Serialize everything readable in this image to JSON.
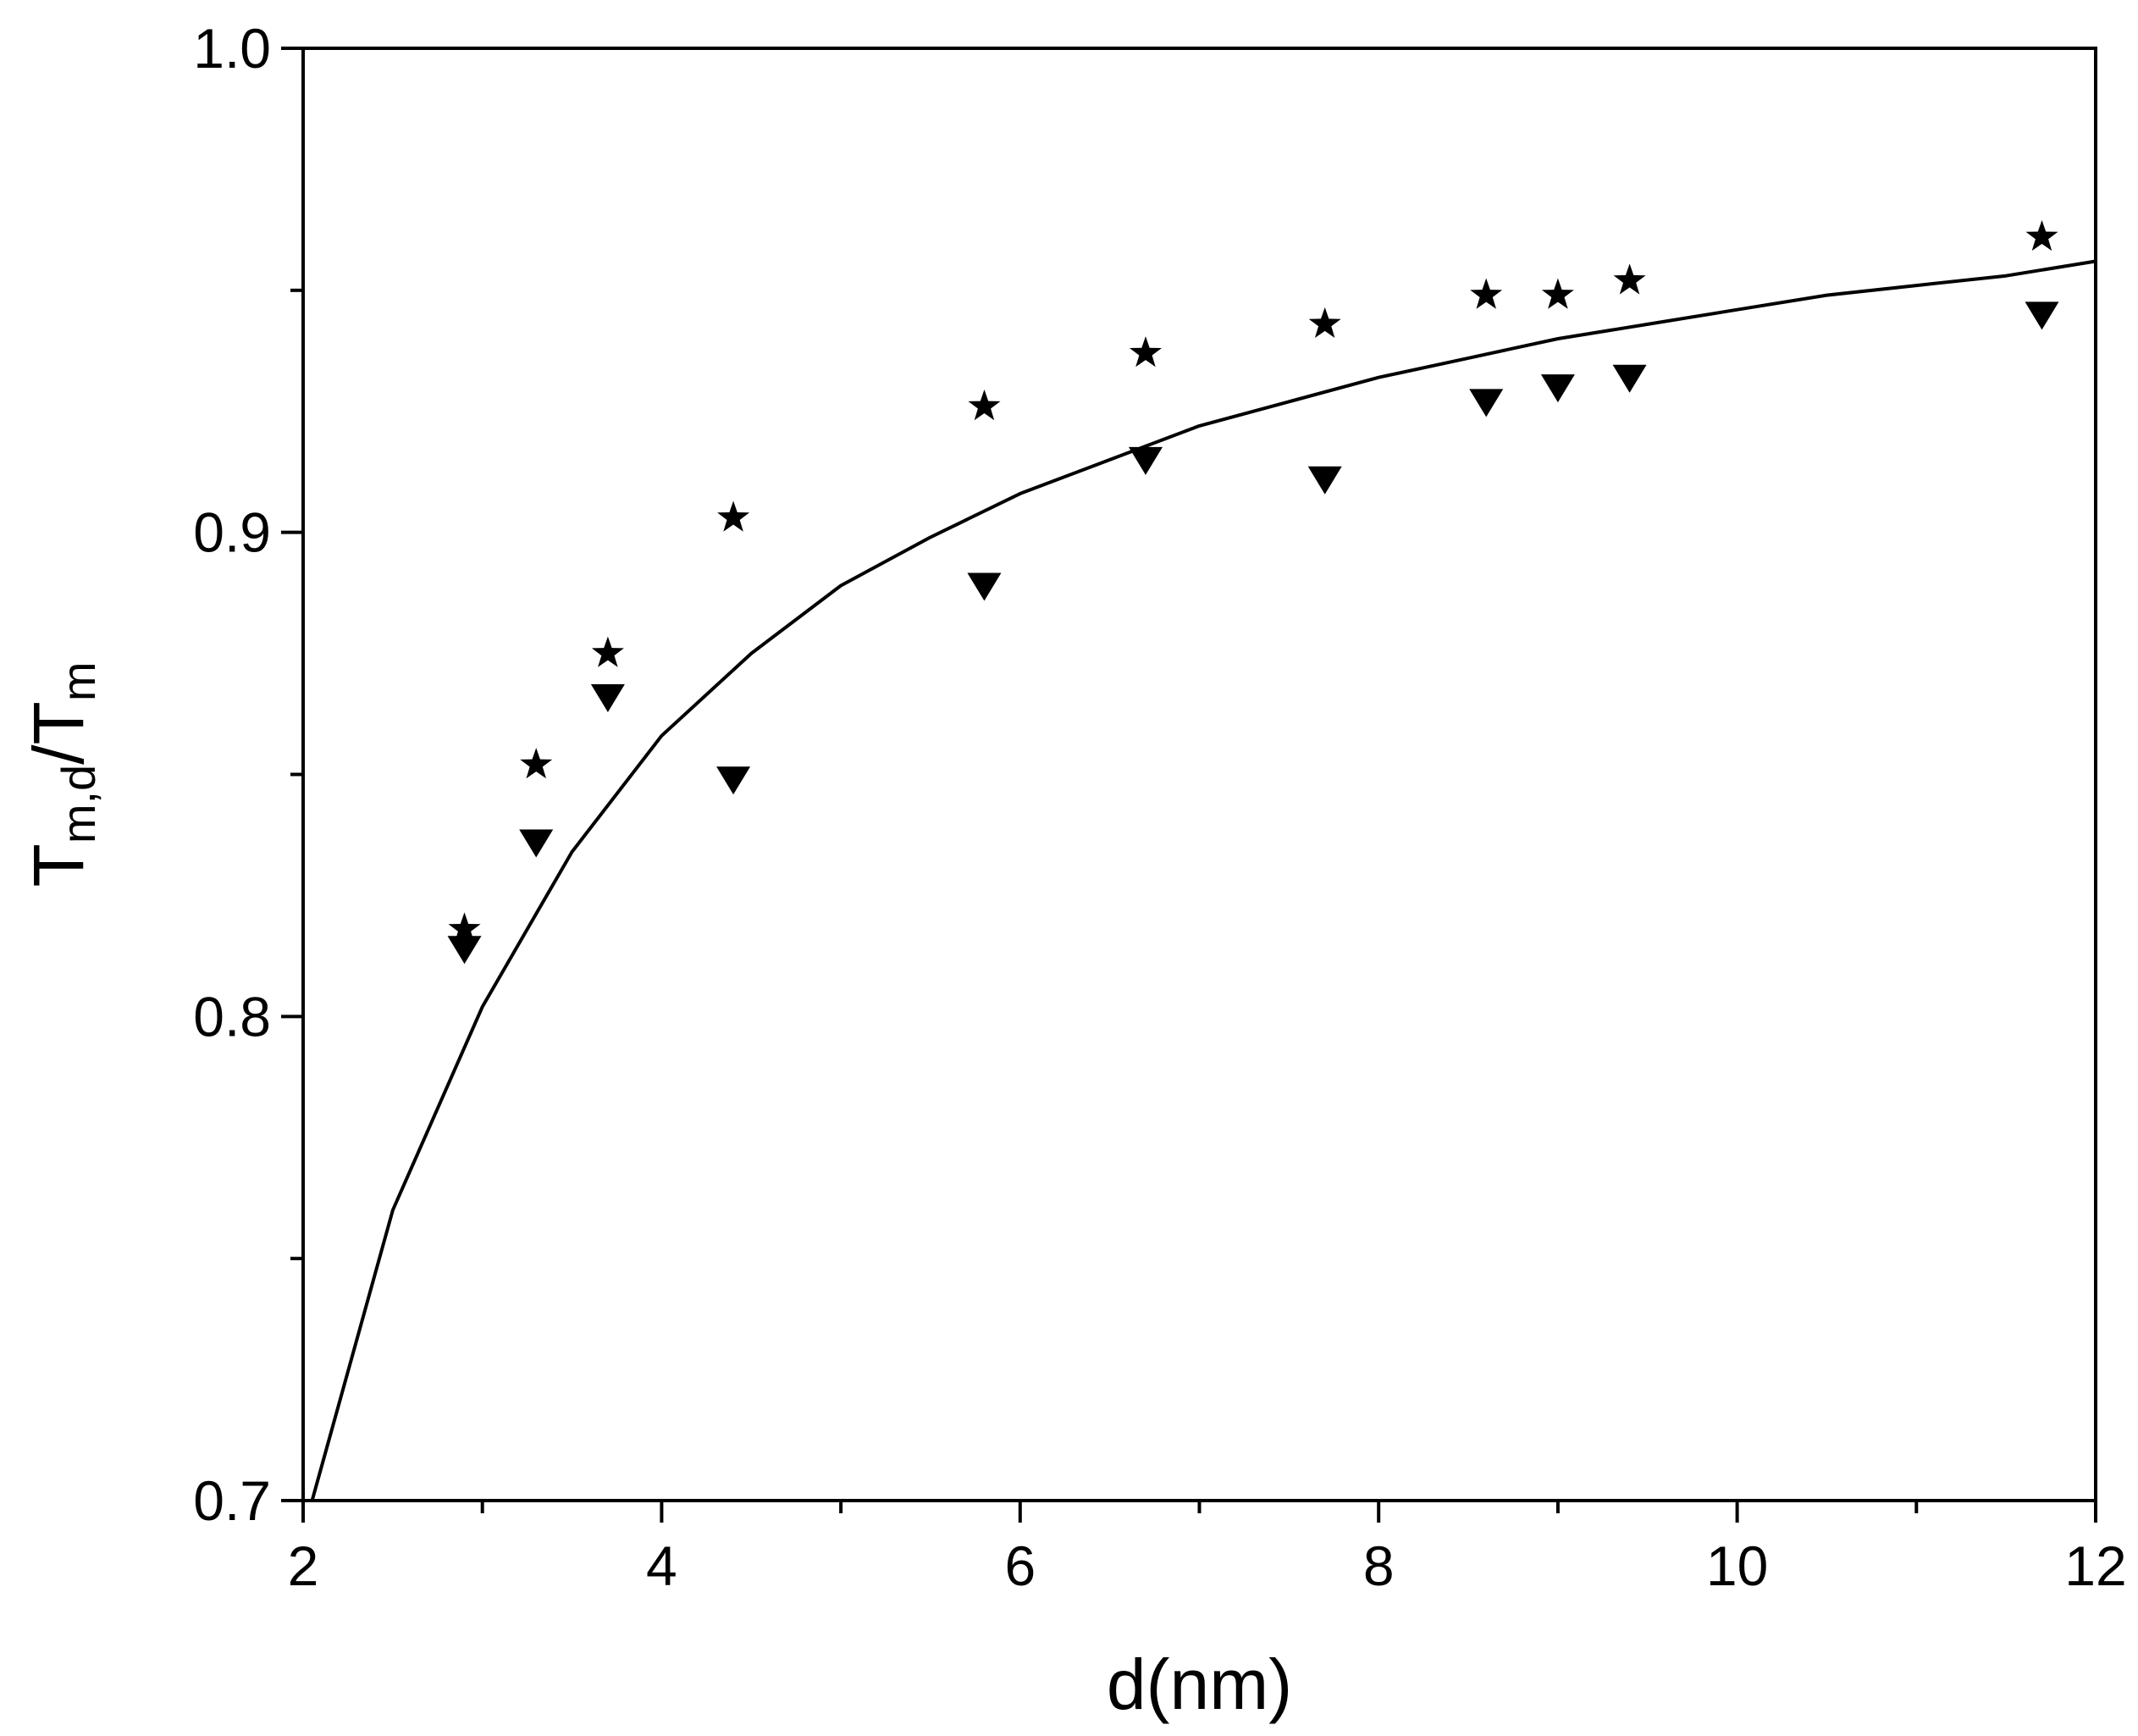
{
  "chart_data": {
    "type": "scatter",
    "title": "",
    "xlabel": "d(nm)",
    "ylabel": {
      "main": "T",
      "sub_num": "m,d",
      "slash": "/T",
      "sub_den": "m"
    },
    "xlim": [
      2,
      12
    ],
    "ylim": [
      0.7,
      1.0
    ],
    "x_major_ticks": [
      2,
      4,
      6,
      8,
      10,
      12
    ],
    "x_minor_ticks": [
      3,
      5,
      7,
      9,
      11
    ],
    "y_major_ticks": [
      0.7,
      0.8,
      0.9,
      1.0
    ],
    "y_minor_ticks": [
      0.75,
      0.85,
      0.95
    ],
    "x_tick_labels": [
      "2",
      "4",
      "6",
      "8",
      "10",
      "12"
    ],
    "y_tick_labels": [
      "0.7",
      "0.8",
      "0.9",
      "1.0"
    ],
    "grid": false,
    "legend": "none",
    "series": [
      {
        "name": "stars",
        "marker": "star",
        "color": "#000000",
        "x": [
          2.9,
          3.3,
          3.7,
          4.4,
          5.8,
          6.7,
          7.7,
          8.6,
          9.0,
          9.4,
          11.7
        ],
        "y": [
          0.818,
          0.852,
          0.875,
          0.903,
          0.926,
          0.937,
          0.943,
          0.949,
          0.949,
          0.952,
          0.961
        ]
      },
      {
        "name": "triangles",
        "marker": "triangle-down",
        "color": "#000000",
        "x": [
          2.9,
          3.3,
          3.7,
          4.4,
          5.8,
          6.7,
          7.7,
          8.6,
          9.0,
          9.4,
          11.7
        ],
        "y": [
          0.814,
          0.836,
          0.866,
          0.849,
          0.889,
          0.915,
          0.911,
          0.927,
          0.93,
          0.932,
          0.945
        ]
      },
      {
        "name": "fit",
        "marker": "none",
        "line": "solid",
        "color": "#000000",
        "x": [
          2.05,
          2.5,
          3.0,
          3.5,
          4.0,
          4.5,
          5.0,
          5.5,
          6.0,
          6.5,
          7.0,
          7.5,
          8.0,
          8.5,
          9.0,
          9.5,
          10.0,
          10.5,
          11.0,
          11.5,
          12.0
        ],
        "y": [
          0.7,
          0.76,
          0.802,
          0.834,
          0.858,
          0.875,
          0.889,
          0.899,
          0.908,
          0.915,
          0.922,
          0.927,
          0.932,
          0.936,
          0.94,
          0.943,
          0.946,
          0.949,
          0.951,
          0.953,
          0.956
        ]
      }
    ]
  }
}
